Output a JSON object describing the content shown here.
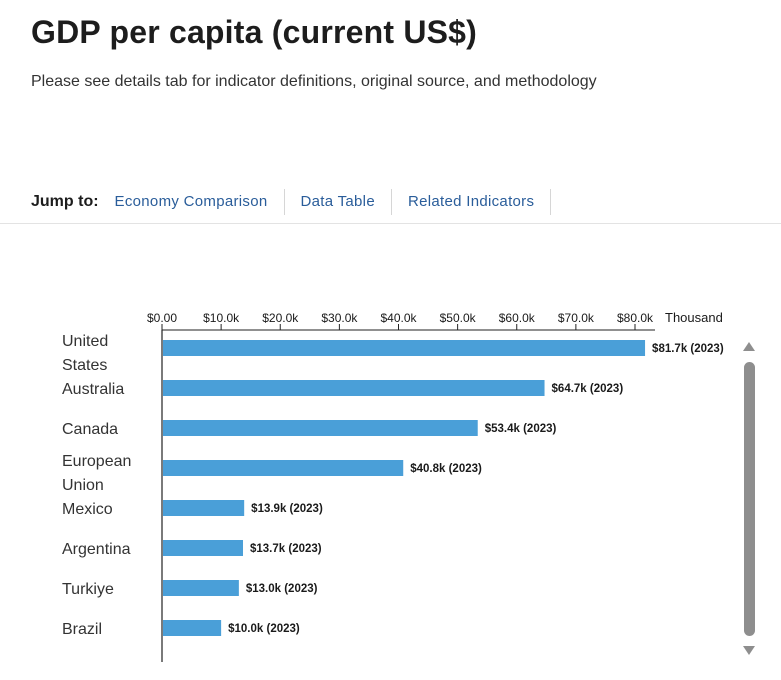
{
  "header": {
    "title": "GDP per capita (current US$)",
    "subtitle": "Please see details tab for indicator definitions, original source, and methodology"
  },
  "jump_nav": {
    "label": "Jump to:",
    "links": [
      "Economy Comparison",
      "Data Table",
      "Related Indicators"
    ]
  },
  "chart_data": {
    "type": "bar",
    "orientation": "horizontal",
    "title": "",
    "axis_unit_label": "Thousand",
    "x_ticks": [
      "$0.00",
      "$10.0k",
      "$20.0k",
      "$30.0k",
      "$40.0k",
      "$50.0k",
      "$60.0k",
      "$70.0k",
      "$80.0k"
    ],
    "xlim": [
      0,
      80
    ],
    "categories": [
      [
        "United",
        "States"
      ],
      [
        "Australia"
      ],
      [
        "Canada"
      ],
      [
        "European",
        "Union"
      ],
      [
        "Mexico"
      ],
      [
        "Argentina"
      ],
      [
        "Turkiye"
      ],
      [
        "Brazil"
      ]
    ],
    "values": [
      81.7,
      64.7,
      53.4,
      40.8,
      13.9,
      13.7,
      13.0,
      10.0
    ],
    "data_labels": [
      "$81.7k (2023)",
      "$64.7k (2023)",
      "$53.4k (2023)",
      "$40.8k (2023)",
      "$13.9k (2023)",
      "$13.7k (2023)",
      "$13.0k (2023)",
      "$10.0k (2023)"
    ],
    "bar_color": "#4a9fd8"
  }
}
